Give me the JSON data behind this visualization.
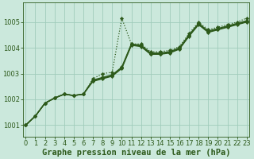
{
  "background_color": "#cbe8dc",
  "plot_bg_color": "#cbe8dc",
  "line_color": "#2d5a1b",
  "marker_color": "#2d5a1b",
  "grid_color": "#a0ccbb",
  "xlabel": "Graphe pression niveau de la mer (hPa)",
  "xlabel_fontsize": 7.5,
  "tick_fontsize": 6,
  "yticks": [
    1001,
    1002,
    1003,
    1004,
    1005
  ],
  "xticks": [
    0,
    1,
    2,
    3,
    4,
    5,
    6,
    7,
    8,
    9,
    10,
    11,
    12,
    13,
    14,
    15,
    16,
    17,
    18,
    19,
    20,
    21,
    22,
    23
  ],
  "ylim": [
    1000.55,
    1005.75
  ],
  "xlim": [
    -0.3,
    23.3
  ],
  "series": [
    {
      "y": [
        1001.0,
        1001.35,
        1001.85,
        1002.05,
        1002.2,
        1002.15,
        1002.2,
        1002.8,
        1003.0,
        1003.05,
        1005.15,
        1004.15,
        1004.15,
        1003.85,
        1003.85,
        1003.9,
        1004.05,
        1004.55,
        1005.0,
        1004.7,
        1004.8,
        1004.9,
        1005.0,
        1005.15
      ],
      "linestyle": "dotted",
      "linewidth": 0.9
    },
    {
      "y": [
        1001.0,
        1001.35,
        1001.85,
        1002.05,
        1002.2,
        1002.15,
        1002.2,
        1002.75,
        1002.85,
        1002.95,
        1003.25,
        1004.15,
        1004.1,
        1003.8,
        1003.8,
        1003.85,
        1004.0,
        1004.5,
        1004.95,
        1004.65,
        1004.75,
        1004.85,
        1004.95,
        1005.05
      ],
      "linestyle": "solid",
      "linewidth": 1.0
    },
    {
      "y": [
        1001.0,
        1001.35,
        1001.85,
        1002.05,
        1002.2,
        1002.15,
        1002.2,
        1002.72,
        1002.82,
        1002.92,
        1003.22,
        1004.12,
        1004.07,
        1003.77,
        1003.77,
        1003.82,
        1003.97,
        1004.47,
        1004.92,
        1004.62,
        1004.72,
        1004.82,
        1004.92,
        1005.02
      ],
      "linestyle": "solid",
      "linewidth": 1.0
    },
    {
      "y": [
        1001.0,
        1001.35,
        1001.85,
        1002.05,
        1002.2,
        1002.15,
        1002.2,
        1002.7,
        1002.8,
        1002.9,
        1003.2,
        1004.1,
        1004.05,
        1003.75,
        1003.75,
        1003.8,
        1003.95,
        1004.45,
        1004.9,
        1004.6,
        1004.7,
        1004.8,
        1004.9,
        1005.0
      ],
      "linestyle": "solid",
      "linewidth": 1.0
    }
  ],
  "marker": "D",
  "marker_size": 2.2,
  "figure_width": 3.2,
  "figure_height": 2.0,
  "dpi": 100
}
